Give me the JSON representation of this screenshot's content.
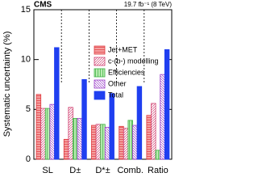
{
  "chart_data": {
    "type": "bar",
    "title": "CMS",
    "annotation": "19.7 fb⁻¹ (8 TeV)",
    "y_label": "Systematic uncertainty (%)",
    "categories": [
      "SL",
      "D±",
      "D*±",
      "Comb.",
      "Ratio"
    ],
    "series": [
      {
        "name": "Jet+MET",
        "color": "#e0393e",
        "fill": "#f4a0a0",
        "hatch": "-",
        "values": [
          6.5,
          2.0,
          3.4,
          3.3,
          4.4
        ]
      },
      {
        "name": "c-(b-) modelling",
        "color": "#d04070",
        "fill": "#ffffff",
        "hatch": "/",
        "values": [
          5.1,
          5.2,
          3.5,
          3.1,
          5.6
        ]
      },
      {
        "name": "Efficiencies",
        "color": "#3cb043",
        "fill": "#b8ecb0",
        "hatch": "|",
        "values": [
          5.1,
          4.1,
          3.5,
          3.9,
          0.9
        ]
      },
      {
        "name": "Other",
        "color": "#9a3ec8",
        "fill": "#ffffff",
        "hatch": "\\",
        "values": [
          5.5,
          4.1,
          3.2,
          3.4,
          8.5
        ]
      },
      {
        "name": "Total",
        "color": "#1f3ff0",
        "fill": "#1f3ff0",
        "hatch": "",
        "values": [
          11.2,
          8.0,
          6.6,
          7.3,
          11.0
        ]
      }
    ],
    "ylim": [
      0,
      15
    ],
    "yticks": [
      0,
      5,
      10,
      15
    ],
    "legend": "upper right"
  }
}
